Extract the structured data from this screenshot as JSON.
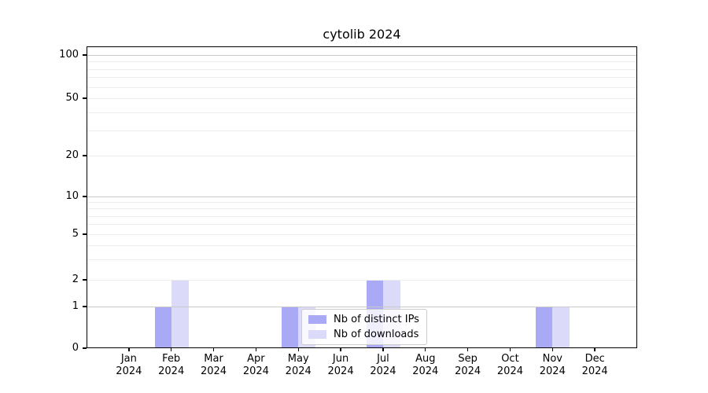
{
  "chart_data": {
    "type": "bar",
    "title": "cytolib 2024",
    "year_label": "2024",
    "categories": [
      "Jan",
      "Feb",
      "Mar",
      "Apr",
      "May",
      "Jun",
      "Jul",
      "Aug",
      "Sep",
      "Oct",
      "Nov",
      "Dec"
    ],
    "series": [
      {
        "name": "Nb of distinct IPs",
        "color": "#a9a9f6",
        "values": [
          0,
          1,
          0,
          0,
          1,
          0,
          2,
          0,
          0,
          0,
          1,
          0
        ]
      },
      {
        "name": "Nb of downloads",
        "color": "#dbdbf9",
        "values": [
          0,
          2,
          0,
          0,
          1,
          0,
          2,
          0,
          0,
          0,
          1,
          0
        ]
      }
    ],
    "yticks": [
      0,
      1,
      2,
      5,
      10,
      20,
      50,
      100
    ],
    "ylim": [
      0,
      115
    ],
    "yscale": "symlog",
    "grid": true,
    "legend_position": "lower-center",
    "colors": {
      "grid_minor": "#ececec",
      "grid_major": "#c9c9c9",
      "axis": "#000000",
      "legend_border": "#cccccc"
    }
  }
}
